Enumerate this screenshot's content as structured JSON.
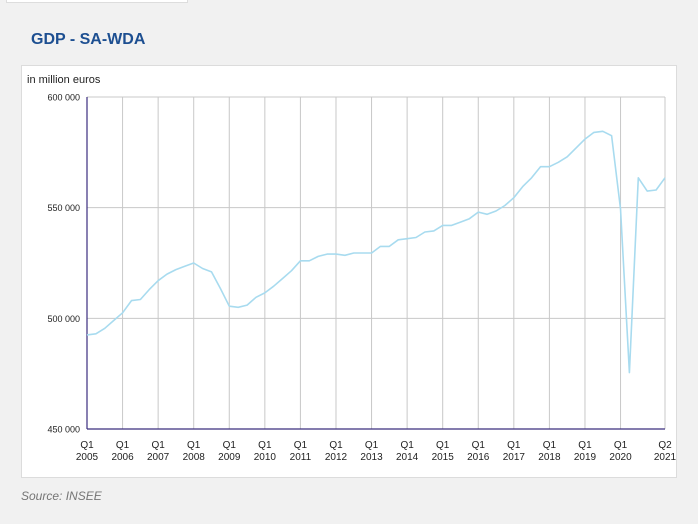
{
  "title": "GDP - SA-WDA",
  "source": "Source: INSEE",
  "colors": {
    "title": "#1d4f91",
    "line": "#a8dbef",
    "axis": "#3b2d7e",
    "grid": "#c8c8c8"
  },
  "chart_data": {
    "type": "line",
    "title": "GDP - SA-WDA",
    "ylabel": "in million euros",
    "xlabel": "",
    "ylim": [
      450000,
      600000
    ],
    "yticks": [
      450000,
      500000,
      550000,
      600000
    ],
    "ytick_labels": [
      "450 000",
      "500 000",
      "550 000",
      "600 000"
    ],
    "grid": true,
    "x_start": "2005-Q1",
    "x_ticks": [
      {
        "q": "Q1",
        "y": "2005",
        "i": 0
      },
      {
        "q": "Q1",
        "y": "2006",
        "i": 4
      },
      {
        "q": "Q1",
        "y": "2007",
        "i": 8
      },
      {
        "q": "Q1",
        "y": "2008",
        "i": 12
      },
      {
        "q": "Q1",
        "y": "2009",
        "i": 16
      },
      {
        "q": "Q1",
        "y": "2010",
        "i": 20
      },
      {
        "q": "Q1",
        "y": "2011",
        "i": 24
      },
      {
        "q": "Q1",
        "y": "2012",
        "i": 28
      },
      {
        "q": "Q1",
        "y": "2013",
        "i": 32
      },
      {
        "q": "Q1",
        "y": "2014",
        "i": 36
      },
      {
        "q": "Q1",
        "y": "2015",
        "i": 40
      },
      {
        "q": "Q1",
        "y": "2016",
        "i": 44
      },
      {
        "q": "Q1",
        "y": "2017",
        "i": 48
      },
      {
        "q": "Q1",
        "y": "2018",
        "i": 52
      },
      {
        "q": "Q1",
        "y": "2019",
        "i": 56
      },
      {
        "q": "Q1",
        "y": "2020",
        "i": 60
      },
      {
        "q": "Q2",
        "y": "2021",
        "i": 65
      }
    ],
    "series": [
      {
        "name": "GDP",
        "values": [
          492500,
          493000,
          495500,
          499000,
          502500,
          508000,
          508500,
          513000,
          517000,
          520000,
          522000,
          523500,
          525000,
          522500,
          521000,
          513500,
          505500,
          505000,
          506000,
          509500,
          511500,
          514500,
          518000,
          521500,
          526000,
          526000,
          528000,
          529000,
          529000,
          528500,
          529500,
          529500,
          529500,
          532500,
          532500,
          535500,
          536000,
          536500,
          539000,
          539500,
          542000,
          542000,
          543500,
          545000,
          548000,
          547000,
          548500,
          551000,
          554500,
          559500,
          563500,
          568500,
          568500,
          570500,
          573000,
          577000,
          581000,
          584000,
          584500,
          582500,
          549500,
          475500,
          563500,
          557500,
          558000,
          563500
        ]
      }
    ]
  }
}
